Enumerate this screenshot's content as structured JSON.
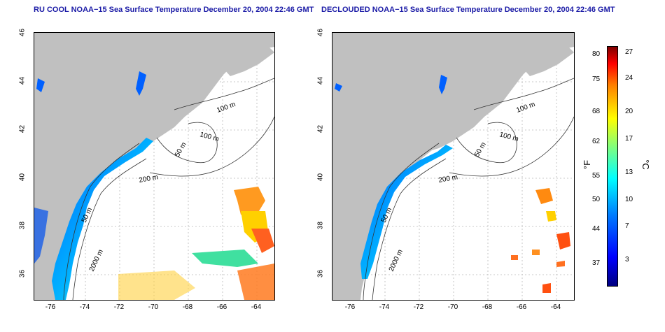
{
  "titles": {
    "left": "RU COOL NOAA−15 Sea Surface Temperature December 20, 2004 22:46 GMT",
    "right": "DECLOUDED NOAA−15 Sea Surface Temperature December 20, 2004 22:46 GMT"
  },
  "axes": {
    "lat_ticks": [
      "46",
      "44",
      "42",
      "40",
      "38",
      "36"
    ],
    "lon_ticks": [
      "-76",
      "-74",
      "-72",
      "-70",
      "-68",
      "-66",
      "-64"
    ]
  },
  "contours": {
    "c100a": "100 m",
    "c100b": "100 m",
    "c50a": "50 m",
    "c200": "200 m",
    "c50b": "50 m",
    "c2000": "2000 m"
  },
  "colorbar": {
    "unit_f": "°F",
    "unit_c": "°C",
    "f_ticks": [
      "80",
      "75",
      "68",
      "62",
      "55",
      "50",
      "44",
      "37"
    ],
    "c_ticks": [
      "27",
      "24",
      "20",
      "17",
      "13",
      "10",
      "7",
      "3"
    ]
  },
  "colors": {
    "land": "#c0c0c0",
    "title": "#1a1aa6"
  }
}
